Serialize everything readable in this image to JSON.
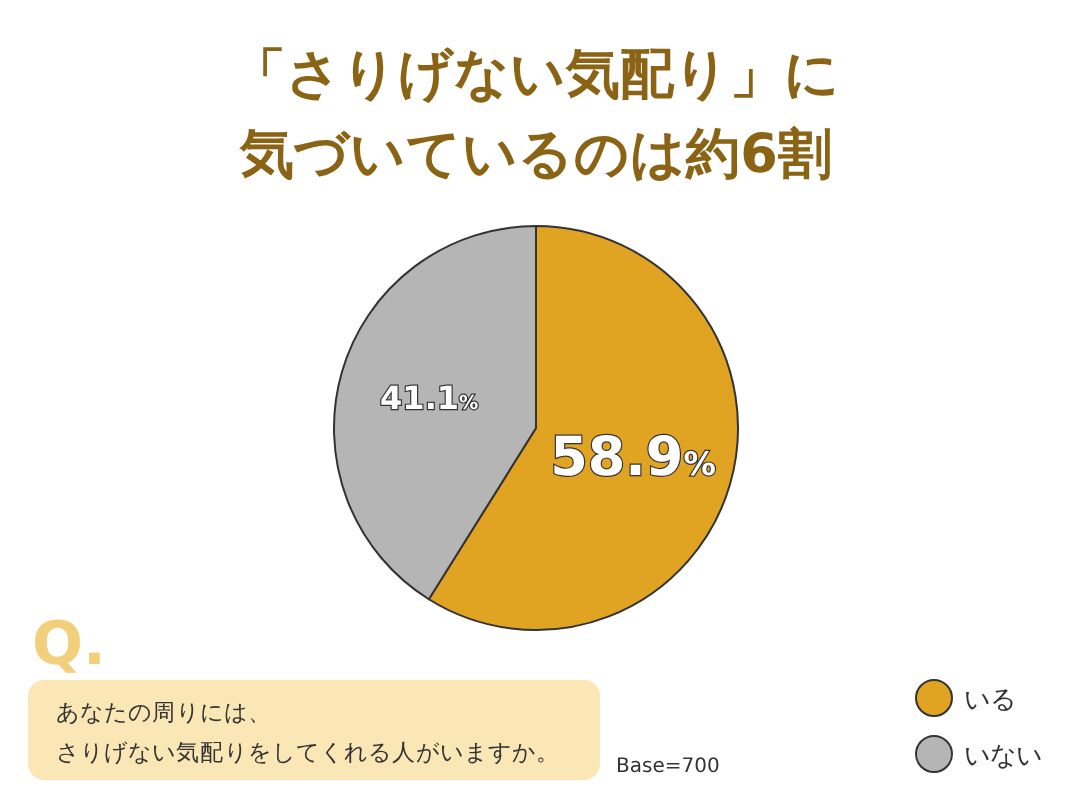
{
  "chart_data": {
    "type": "pie",
    "title": "「さりげない気配り」に気づいているのは約6割",
    "categories": [
      "いる",
      "いない"
    ],
    "values": [
      58.9,
      41.1
    ],
    "colors": [
      "#e0a322",
      "#b5b5b5"
    ],
    "value_labels": [
      "58.9%",
      "41.1%"
    ],
    "legend": "bottom right",
    "annotations": [
      "Q.",
      "あなたの周りには、",
      "さりげない気配りをしてくれる人がいますか。",
      "Base=700"
    ]
  }
}
